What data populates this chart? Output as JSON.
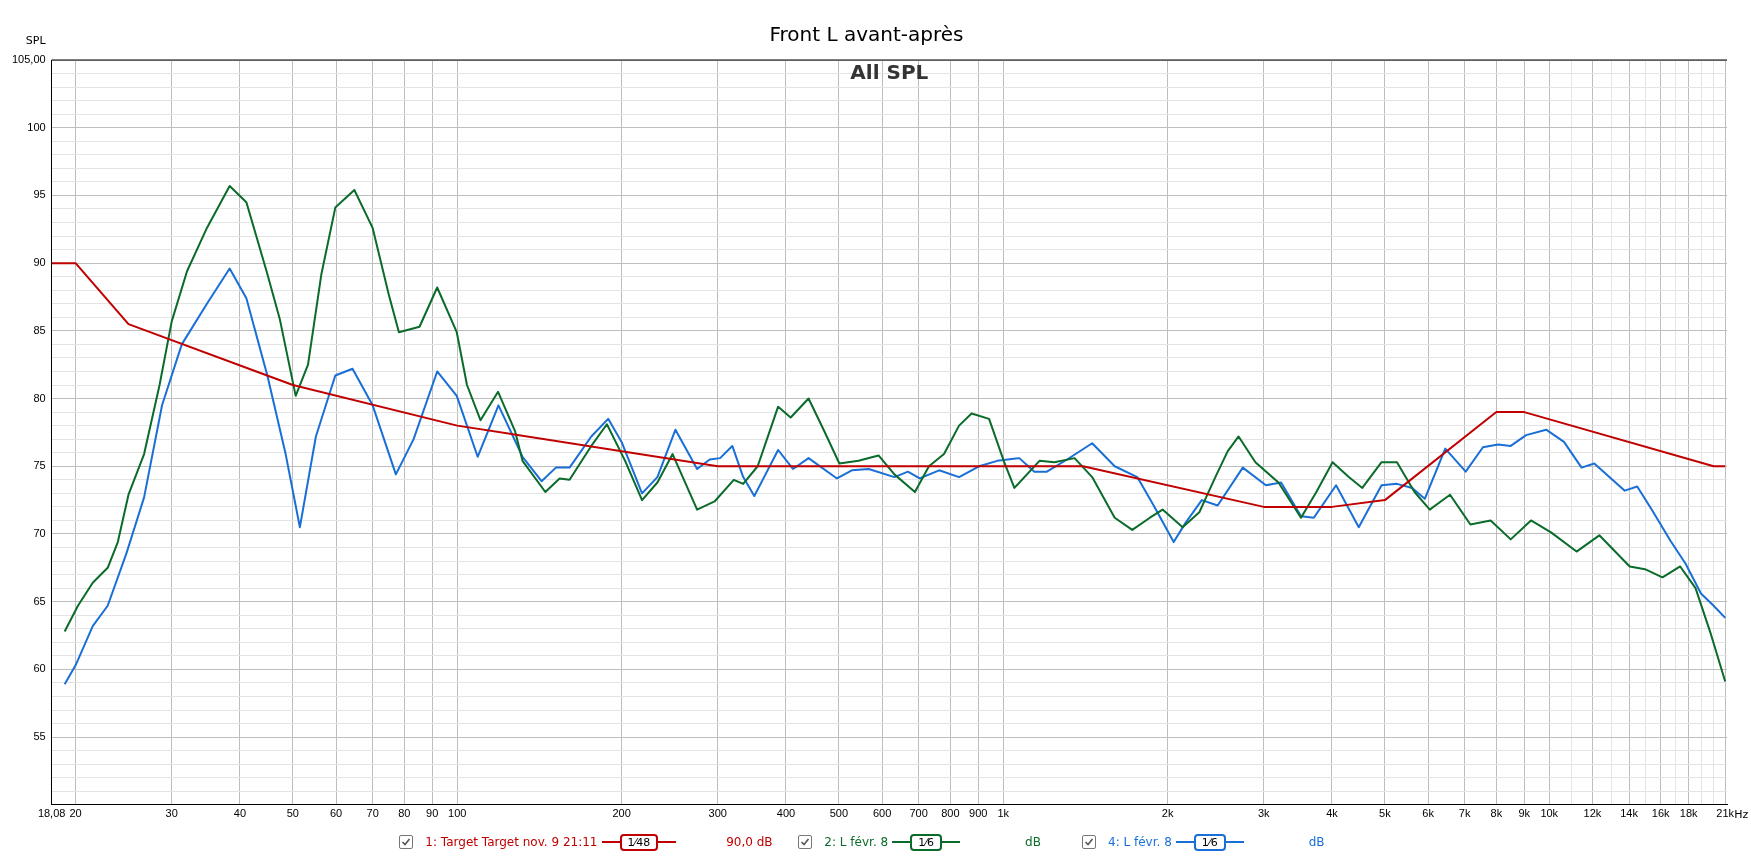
{
  "chart_data": {
    "type": "line",
    "title": "Front L avant-après",
    "subtitle": "All SPL",
    "ylabel": "SPL",
    "log": "x",
    "grid": true,
    "legend": "bottom",
    "marker": "none",
    "line_style": "solid",
    "xlim": [
      18.08,
      21160
    ],
    "ylim": [
      50,
      105
    ],
    "xticks": [
      {
        "value": 18.08,
        "label": "18,08"
      },
      20,
      30,
      40,
      50,
      60,
      70,
      80,
      90,
      100,
      200,
      300,
      400,
      500,
      600,
      700,
      800,
      900,
      {
        "value": 1000,
        "label": "1k"
      },
      {
        "value": 2000,
        "label": "2k"
      },
      {
        "value": 3000,
        "label": "3k"
      },
      {
        "value": 4000,
        "label": "4k"
      },
      {
        "value": 5000,
        "label": "5k"
      },
      {
        "value": 6000,
        "label": "6k"
      },
      {
        "value": 7000,
        "label": "7k"
      },
      {
        "value": 8000,
        "label": "8k"
      },
      {
        "value": 9000,
        "label": "9k"
      },
      {
        "value": 10000,
        "label": "10k"
      },
      {
        "value": 11000,
        "label": null
      },
      {
        "value": 12000,
        "label": "12k"
      },
      {
        "value": 13000,
        "label": null
      },
      {
        "value": 14000,
        "label": "14k"
      },
      {
        "value": 15000,
        "label": null
      },
      {
        "value": 16000,
        "label": "16k"
      },
      {
        "value": 17000,
        "label": null
      },
      {
        "value": 18000,
        "label": "18k"
      },
      {
        "value": 19000,
        "label": null
      },
      {
        "value": 20000,
        "label": null
      },
      {
        "value": 21000,
        "label": "21k"
      }
    ],
    "xlabel": "Hz",
    "yticks": [
      {
        "value": 51,
        "label": null
      },
      {
        "value": 52,
        "label": null
      },
      {
        "value": 53,
        "label": null
      },
      {
        "value": 54,
        "label": null
      },
      55,
      {
        "value": 56,
        "label": null
      },
      {
        "value": 57,
        "label": null
      },
      {
        "value": 58,
        "label": null
      },
      {
        "value": 59,
        "label": null
      },
      60,
      {
        "value": 61,
        "label": null
      },
      {
        "value": 62,
        "label": null
      },
      {
        "value": 63,
        "label": null
      },
      {
        "value": 64,
        "label": null
      },
      65,
      {
        "value": 66,
        "label": null
      },
      {
        "value": 67,
        "label": null
      },
      {
        "value": 68,
        "label": null
      },
      {
        "value": 69,
        "label": null
      },
      70,
      {
        "value": 71,
        "label": null
      },
      {
        "value": 72,
        "label": null
      },
      {
        "value": 73,
        "label": null
      },
      {
        "value": 74,
        "label": null
      },
      75,
      {
        "value": 76,
        "label": null
      },
      {
        "value": 77,
        "label": null
      },
      {
        "value": 78,
        "label": null
      },
      {
        "value": 79,
        "label": null
      },
      80,
      {
        "value": 81,
        "label": null
      },
      {
        "value": 82,
        "label": null
      },
      {
        "value": 83,
        "label": null
      },
      {
        "value": 84,
        "label": null
      },
      85,
      {
        "value": 86,
        "label": null
      },
      {
        "value": 87,
        "label": null
      },
      {
        "value": 88,
        "label": null
      },
      {
        "value": 89,
        "label": null
      },
      90,
      {
        "value": 91,
        "label": null
      },
      {
        "value": 92,
        "label": null
      },
      {
        "value": 93,
        "label": null
      },
      {
        "value": 94,
        "label": null
      },
      95,
      {
        "value": 96,
        "label": null
      },
      {
        "value": 97,
        "label": null
      },
      {
        "value": 98,
        "label": null
      },
      {
        "value": 99,
        "label": null
      },
      100,
      {
        "value": 101,
        "label": null
      },
      {
        "value": 102,
        "label": null
      },
      {
        "value": 103,
        "label": null
      },
      {
        "value": 104,
        "label": null
      },
      {
        "value": 105,
        "label": "105,00"
      }
    ],
    "annotations": [
      "1⁄48",
      "90,0 dB",
      "1⁄6",
      "dB",
      "1⁄6",
      "dB"
    ],
    "series": [
      {
        "name": "1: Target Target nov. 9 21:11",
        "color": "#c00000",
        "x": [
          18.08,
          20,
          25,
          50,
          100,
          300,
          1400,
          3000,
          4000,
          5000,
          8000,
          9000,
          20000,
          21000
        ],
        "values": [
          90,
          90,
          85.5,
          81,
          78,
          75,
          75,
          72,
          72,
          72.5,
          79,
          79,
          75,
          75
        ]
      },
      {
        "name": "2: L févr. 8",
        "color": "#0a6b2a",
        "x": [
          19.1,
          20.2,
          21.5,
          22.9,
          23.9,
          25,
          26.7,
          28.5,
          30,
          32,
          34.8,
          38.3,
          41.1,
          44.9,
          47.3,
          50.6,
          53.3,
          56.4,
          59.8,
          64.8,
          70,
          74.9,
          78.2,
          85.3,
          91.9,
          99.8,
          104.2,
          110.3,
          118.8,
          127.6,
          131.7,
          145,
          154,
          160.6,
          176,
          188,
          203,
          218,
          232.6,
          248,
          275,
          296,
          321,
          334,
          355,
          387,
          408,
          440,
          470,
          501,
          543,
          591,
          632,
          689,
          731,
          779,
          830,
          875,
          942,
          1004,
          1048,
          1165,
          1241,
          1351,
          1455,
          1600,
          1723,
          1856,
          1958,
          2131,
          2286,
          2446,
          2576,
          2698,
          2896,
          3192,
          3510,
          3745,
          4010,
          4294,
          4546,
          4930,
          5261,
          5666,
          6042,
          6581,
          7170,
          7810,
          8500,
          9260,
          10090,
          11220,
          12350,
          14040,
          14970,
          16120,
          17370,
          18530,
          19770,
          21000
        ],
        "values": [
          62.8,
          64.7,
          66.4,
          67.5,
          69.4,
          72.9,
          75.9,
          81,
          85.7,
          89.4,
          92.6,
          95.7,
          94.5,
          89.2,
          85.9,
          80.2,
          82.5,
          89.2,
          94.1,
          95.4,
          92.6,
          87.7,
          84.9,
          85.3,
          88.2,
          84.9,
          81,
          78.4,
          80.5,
          77.6,
          75.4,
          73.1,
          74.1,
          74,
          76.5,
          78.1,
          75.4,
          72.5,
          73.8,
          75.9,
          71.8,
          72.4,
          74,
          73.7,
          75,
          79.4,
          78.6,
          80,
          77.6,
          75.2,
          75.4,
          75.8,
          74.4,
          73.1,
          75,
          75.9,
          78,
          78.9,
          78.5,
          75.3,
          73.4,
          75.4,
          75.3,
          75.6,
          74.2,
          71.2,
          70.3,
          71.2,
          71.8,
          70.5,
          71.6,
          74.2,
          76.1,
          77.2,
          75.3,
          73.8,
          71.2,
          73.1,
          75.3,
          74.2,
          73.4,
          75.3,
          75.3,
          73.1,
          71.8,
          72.9,
          70.7,
          71,
          69.6,
          71,
          70.1,
          68.7,
          69.9,
          67.6,
          67.4,
          66.8,
          67.6,
          66,
          62.6,
          59.1
        ]
      },
      {
        "name": "4: L févr. 8",
        "color": "#1a6fd6",
        "x": [
          19.1,
          20,
          21.5,
          22.9,
          24.8,
          26.7,
          28.8,
          31.3,
          34.8,
          38.3,
          41.1,
          44.9,
          48.5,
          51.5,
          55.1,
          59.8,
          64.3,
          70,
          77.2,
          83.2,
          91.9,
          99.8,
          109,
          119,
          131.7,
          142.7,
          151.6,
          160.6,
          176,
          189,
          200,
          218,
          232.6,
          251,
          275,
          290,
          303,
          319,
          334,
          350,
          387,
          412,
          440,
          496,
          528,
          567,
          632,
          669,
          703,
          763,
          830,
          903,
          975,
          1070,
          1140,
          1202,
          1309,
          1455,
          1600,
          1760,
          1880,
          2052,
          2155,
          2310,
          2470,
          2746,
          3027,
          3228,
          3510,
          3705,
          4070,
          4478,
          4930,
          5261,
          5609,
          5916,
          6450,
          7030,
          7560,
          8060,
          8500,
          9070,
          9870,
          10640,
          11460,
          12090,
          13750,
          14490,
          15460,
          16670,
          17770,
          18960,
          20000,
          21000
        ],
        "values": [
          58.9,
          60.3,
          63.2,
          64.7,
          68.6,
          72.7,
          79.5,
          84,
          87,
          89.6,
          87.4,
          81.7,
          75.9,
          70.5,
          77.2,
          81.7,
          82.2,
          79.5,
          74.4,
          77,
          82,
          80.2,
          75.7,
          79.5,
          75.7,
          73.9,
          74.9,
          74.9,
          77.2,
          78.5,
          76.8,
          73,
          74.2,
          77.7,
          74.8,
          75.5,
          75.6,
          76.5,
          74.2,
          72.8,
          76.2,
          74.8,
          75.6,
          74.1,
          74.7,
          74.8,
          74.2,
          74.6,
          74.1,
          74.7,
          74.2,
          75,
          75.4,
          75.6,
          74.6,
          74.6,
          75.5,
          76.7,
          75,
          74.2,
          72.2,
          69.4,
          70.8,
          72.5,
          72.1,
          74.9,
          73.6,
          73.8,
          71.3,
          71.2,
          73.6,
          70.5,
          73.6,
          73.7,
          73.4,
          72.6,
          76.3,
          74.6,
          76.4,
          76.6,
          76.5,
          77.3,
          77.7,
          76.8,
          74.9,
          75.2,
          73.2,
          73.5,
          71.7,
          69.5,
          67.8,
          65.6,
          64.7,
          63.8
        ]
      }
    ]
  }
}
